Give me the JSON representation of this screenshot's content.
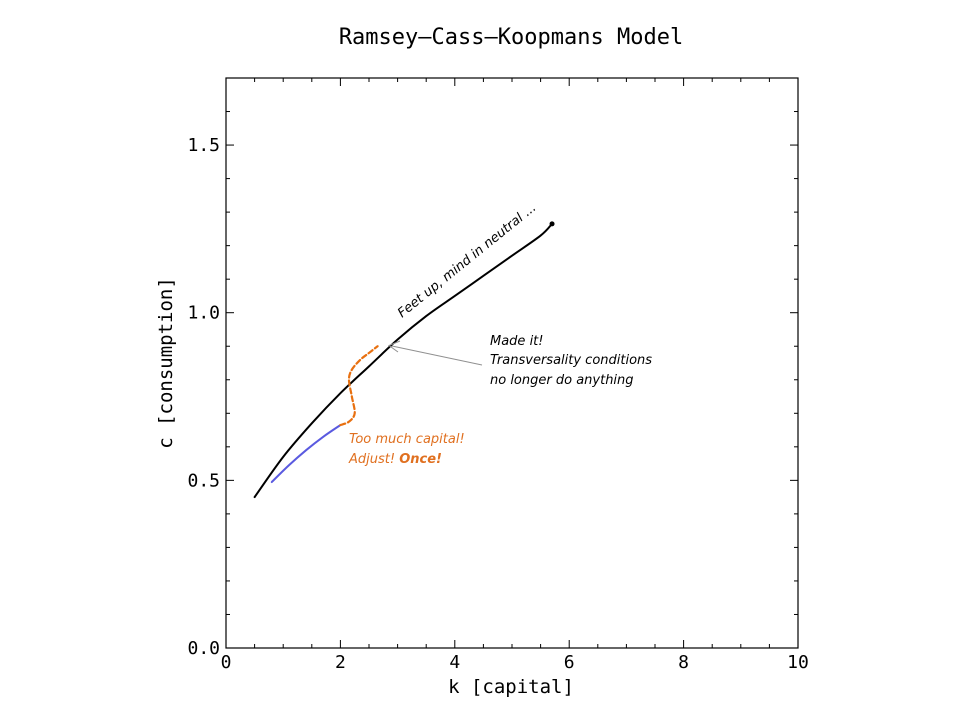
{
  "chart_data": {
    "type": "line",
    "title": "Ramsey–Cass–Koopmans Model",
    "xlabel": "k [capital]",
    "ylabel": "c [consumption]",
    "xlim": [
      0,
      10
    ],
    "ylim": [
      0,
      1.7
    ],
    "xticks": [
      0,
      2,
      4,
      6,
      8,
      10
    ],
    "xtick_labels": [
      "0",
      "2",
      "4",
      "6",
      "8",
      "10"
    ],
    "yticks": [
      0.0,
      0.5,
      1.0,
      1.5
    ],
    "ytick_labels": [
      "0.0",
      "0.5",
      "1.0",
      "1.5"
    ],
    "grid": false,
    "series": [
      {
        "color": "#000000",
        "style": "solid",
        "end_marker": true,
        "x": [
          0.5,
          1.0,
          1.5,
          2.0,
          2.5,
          3.0,
          3.5,
          4.0,
          4.5,
          5.0,
          5.5,
          5.7
        ],
        "y": [
          0.45,
          0.57,
          0.67,
          0.76,
          0.84,
          0.92,
          0.99,
          1.05,
          1.11,
          1.17,
          1.23,
          1.265
        ]
      },
      {
        "color": "#5a5ae0",
        "style": "solid",
        "end_marker": false,
        "x": [
          0.8,
          1.1,
          1.4,
          1.7,
          2.0
        ],
        "y": [
          0.495,
          0.545,
          0.59,
          0.63,
          0.665
        ]
      },
      {
        "color": "#e87010",
        "style": "dashed",
        "end_marker": false,
        "x": [
          2.0,
          2.15,
          2.25,
          2.2,
          2.15,
          2.2,
          2.35,
          2.5,
          2.65
        ],
        "y": [
          0.665,
          0.675,
          0.7,
          0.75,
          0.8,
          0.83,
          0.86,
          0.88,
          0.9
        ]
      }
    ],
    "annotations": {
      "steady_path": {
        "text": "Feet up, mind in neutral ...",
        "color": "#000000"
      },
      "made_it": {
        "lines": [
          "Made it!",
          "Transversality conditions",
          "no longer do anything"
        ],
        "color": "#000000"
      },
      "too_much": {
        "line1": "Too much capital!",
        "line2_prefix": "Adjust! ",
        "line2_bold": "Once!",
        "color": "#e07020"
      },
      "arrow_color": "#909090"
    }
  }
}
